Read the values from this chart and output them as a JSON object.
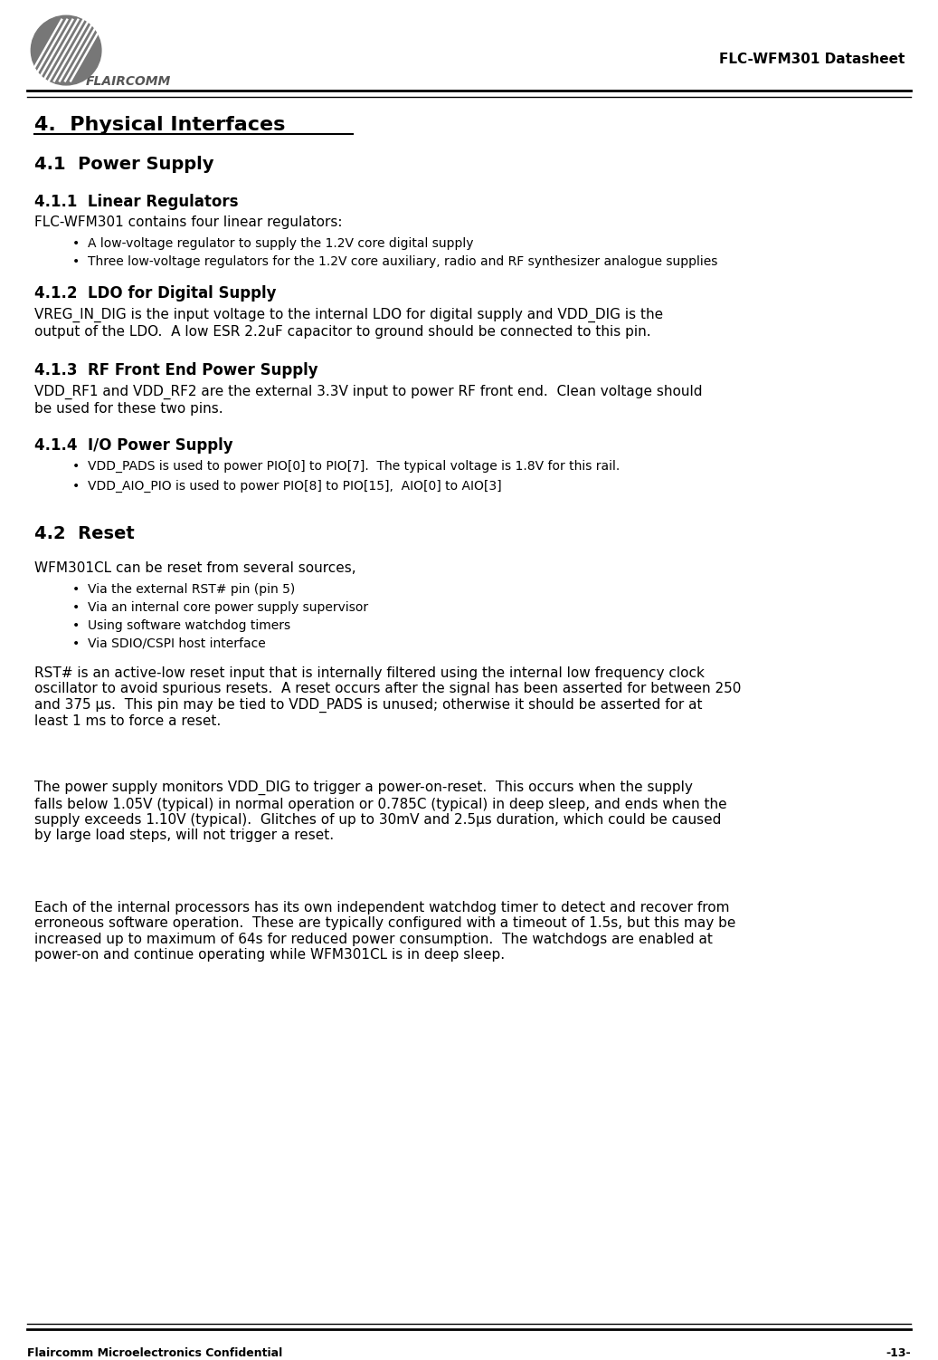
{
  "header_right": "FLC-WFM301 Datasheet",
  "footer_left": "Flaircomm Microelectronics Confidential",
  "footer_right": "-13-",
  "title": "4.  Physical Interfaces",
  "section_41": "4.1  Power Supply",
  "section_411": "4.1.1  Linear Regulators",
  "text_411": "FLC-WFM301 contains four linear regulators:",
  "bullets_411": [
    "A low-voltage regulator to supply the 1.2V core digital supply",
    "Three low-voltage regulators for the 1.2V core auxiliary, radio and RF synthesizer analogue supplies"
  ],
  "section_412": "4.1.2  LDO for Digital Supply",
  "text_412": "VREG_IN_DIG is the input voltage to the internal LDO for digital supply and VDD_DIG is the\noutput of the LDO.  A low ESR 2.2uF capacitor to ground should be connected to this pin.  ",
  "section_413": "4.1.3  RF Front End Power Supply",
  "text_413": "VDD_RF1 and VDD_RF2 are the external 3.3V input to power RF front end.  Clean voltage should\nbe used for these two pins.",
  "section_414": "4.1.4  I/O Power Supply",
  "bullets_414": [
    "VDD_PADS is used to power PIO[0] to PIO[7].  The typical voltage is 1.8V for this rail.",
    "VDD_AIO_PIO is used to power PIO[8] to PIO[15],  AIO[0] to AIO[3]"
  ],
  "section_42": "4.2  Reset",
  "text_42": "WFM301CL can be reset from several sources,",
  "bullets_42": [
    "Via the external RST# pin (pin 5)",
    "Via an internal core power supply supervisor",
    "Using software watchdog timers",
    "Via SDIO/CSPI host interface"
  ],
  "text_42b": "RST# is an active-low reset input that is internally filtered using the internal low frequency clock\noscillator to avoid spurious resets.  A reset occurs after the signal has been asserted for between 250\nand 375 μs.  This pin may be tied to VDD_PADS is unused; otherwise it should be asserted for at\nleast 1 ms to force a reset.",
  "text_42c": "The power supply monitors VDD_DIG to trigger a power-on-reset.  This occurs when the supply\nfalls below 1.05V (typical) in normal operation or 0.785C (typical) in deep sleep, and ends when the\nsupply exceeds 1.10V (typical).  Glitches of up to 30mV and 2.5μs duration, which could be caused\nby large load steps, will not trigger a reset.",
  "text_42d": "Each of the internal processors has its own independent watchdog timer to detect and recover from\nerroneous software operation.  These are typically configured with a timeout of 1.5s, but this may be\nincreased up to maximum of 64s for reduced power consumption.  The watchdogs are enabled at\npower-on and continue operating while WFM301CL is in deep sleep.",
  "bg_color": "#ffffff",
  "text_color": "#000000"
}
